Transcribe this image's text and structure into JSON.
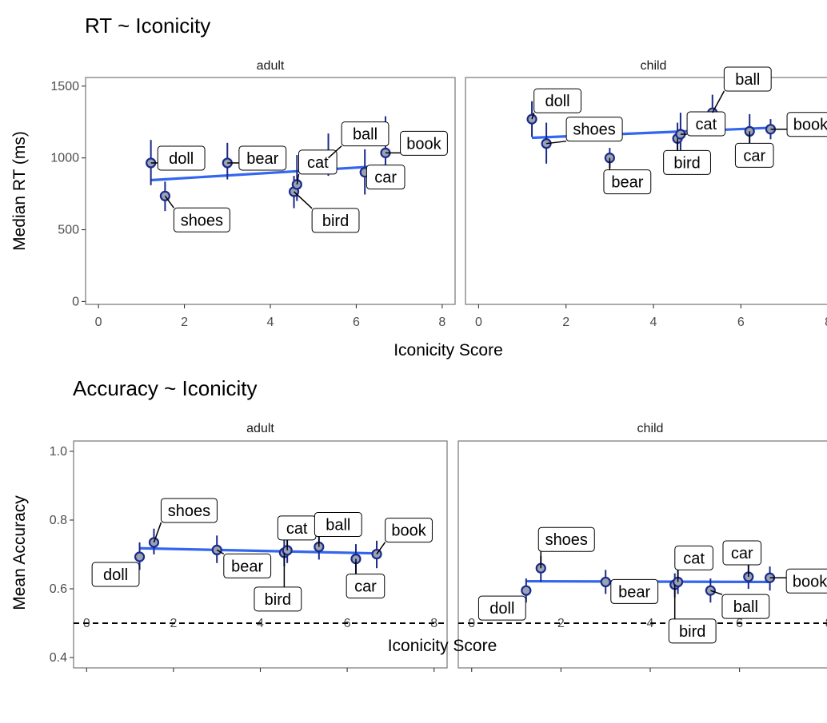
{
  "chart_data": [
    {
      "type": "scatter",
      "title": "RT ~ Iconicity",
      "xlabel": "Iconicity Score",
      "ylabel": "Median RT (ms)",
      "xlim": [
        -0.3,
        8.3
      ],
      "ylim": [
        -20,
        1560
      ],
      "xticks": [
        "0",
        "2",
        "4",
        "6",
        "8"
      ],
      "yticks": [
        "0",
        "500",
        "1000",
        "1500"
      ],
      "grid": false,
      "panels": [
        {
          "facet": "adult",
          "points": [
            {
              "word": "doll",
              "x": 1.22,
              "y": 965,
              "lo": 810,
              "hi": 1125
            },
            {
              "word": "shoes",
              "x": 1.55,
              "y": 735,
              "lo": 630,
              "hi": 835
            },
            {
              "word": "bear",
              "x": 3.0,
              "y": 965,
              "lo": 850,
              "hi": 1105
            },
            {
              "word": "bird",
              "x": 4.55,
              "y": 765,
              "lo": 650,
              "hi": 875
            },
            {
              "word": "cat",
              "x": 4.62,
              "y": 815,
              "lo": 700,
              "hi": 1020
            },
            {
              "word": "ball",
              "x": 5.35,
              "y": 1000,
              "lo": 875,
              "hi": 1170
            },
            {
              "word": "car",
              "x": 6.2,
              "y": 900,
              "lo": 745,
              "hi": 1060
            },
            {
              "word": "book",
              "x": 6.68,
              "y": 1035,
              "lo": 810,
              "hi": 1290
            }
          ],
          "fit": {
            "x": [
              1.22,
              6.68
            ],
            "y": [
              845,
              945
            ]
          }
        },
        {
          "facet": "child",
          "points": [
            {
              "word": "doll",
              "x": 1.22,
              "y": 1270,
              "lo": 1145,
              "hi": 1395
            },
            {
              "word": "shoes",
              "x": 1.55,
              "y": 1100,
              "lo": 960,
              "hi": 1245
            },
            {
              "word": "bear",
              "x": 3.0,
              "y": 1000,
              "lo": 930,
              "hi": 1070
            },
            {
              "word": "bird",
              "x": 4.55,
              "y": 1135,
              "lo": 1020,
              "hi": 1245
            },
            {
              "word": "cat",
              "x": 4.62,
              "y": 1165,
              "lo": 1040,
              "hi": 1315
            },
            {
              "word": "ball",
              "x": 5.35,
              "y": 1315,
              "lo": 1225,
              "hi": 1440
            },
            {
              "word": "car",
              "x": 6.2,
              "y": 1185,
              "lo": 1065,
              "hi": 1305
            },
            {
              "word": "book",
              "x": 6.68,
              "y": 1200,
              "lo": 1130,
              "hi": 1270
            }
          ],
          "fit": {
            "x": [
              1.22,
              6.68
            ],
            "y": [
              1140,
              1210
            ]
          }
        }
      ]
    },
    {
      "type": "scatter",
      "title": "Accuracy ~ Iconicity",
      "xlabel": "Iconicity Score",
      "ylabel": "Mean Accuracy",
      "xlim": [
        -0.3,
        8.3
      ],
      "ylim": [
        0.37,
        1.03
      ],
      "xticks": [
        "0",
        "2",
        "4",
        "6",
        "8"
      ],
      "yticks": [
        "0.4",
        "0.6",
        "0.8",
        "1.0"
      ],
      "reference_line": 0.5,
      "grid": false,
      "panels": [
        {
          "facet": "adult",
          "points": [
            {
              "word": "doll",
              "x": 1.22,
              "y": 0.693,
              "lo": 0.655,
              "hi": 0.735
            },
            {
              "word": "shoes",
              "x": 1.55,
              "y": 0.735,
              "lo": 0.7,
              "hi": 0.775
            },
            {
              "word": "bear",
              "x": 3.0,
              "y": 0.713,
              "lo": 0.675,
              "hi": 0.755
            },
            {
              "word": "bird",
              "x": 4.55,
              "y": 0.705,
              "lo": 0.665,
              "hi": 0.745
            },
            {
              "word": "cat",
              "x": 4.62,
              "y": 0.712,
              "lo": 0.675,
              "hi": 0.75
            },
            {
              "word": "ball",
              "x": 5.35,
              "y": 0.722,
              "lo": 0.685,
              "hi": 0.76
            },
            {
              "word": "car",
              "x": 6.2,
              "y": 0.687,
              "lo": 0.645,
              "hi": 0.73
            },
            {
              "word": "book",
              "x": 6.68,
              "y": 0.701,
              "lo": 0.66,
              "hi": 0.74
            }
          ],
          "fit": {
            "x": [
              1.22,
              6.68
            ],
            "y": [
              0.718,
              0.703
            ]
          }
        },
        {
          "facet": "child",
          "points": [
            {
              "word": "doll",
              "x": 1.22,
              "y": 0.595,
              "lo": 0.56,
              "hi": 0.63
            },
            {
              "word": "shoes",
              "x": 1.55,
              "y": 0.66,
              "lo": 0.62,
              "hi": 0.695
            },
            {
              "word": "bear",
              "x": 3.0,
              "y": 0.62,
              "lo": 0.585,
              "hi": 0.655
            },
            {
              "word": "bird",
              "x": 4.55,
              "y": 0.612,
              "lo": 0.575,
              "hi": 0.645
            },
            {
              "word": "cat",
              "x": 4.62,
              "y": 0.62,
              "lo": 0.585,
              "hi": 0.655
            },
            {
              "word": "ball",
              "x": 5.35,
              "y": 0.595,
              "lo": 0.56,
              "hi": 0.63
            },
            {
              "word": "car",
              "x": 6.2,
              "y": 0.635,
              "lo": 0.6,
              "hi": 0.67
            },
            {
              "word": "book",
              "x": 6.68,
              "y": 0.632,
              "lo": 0.595,
              "hi": 0.665
            }
          ],
          "fit": {
            "x": [
              1.22,
              6.68
            ],
            "y": [
              0.622,
              0.62
            ]
          }
        }
      ]
    }
  ],
  "colors": {
    "point_fill": "#9aa3b3",
    "point_stroke": "#1a2a8a",
    "errorbar": "#1a2a8a",
    "fit_line": "#3366ee",
    "panel_border": "#808080",
    "reference_line": "#000000"
  }
}
